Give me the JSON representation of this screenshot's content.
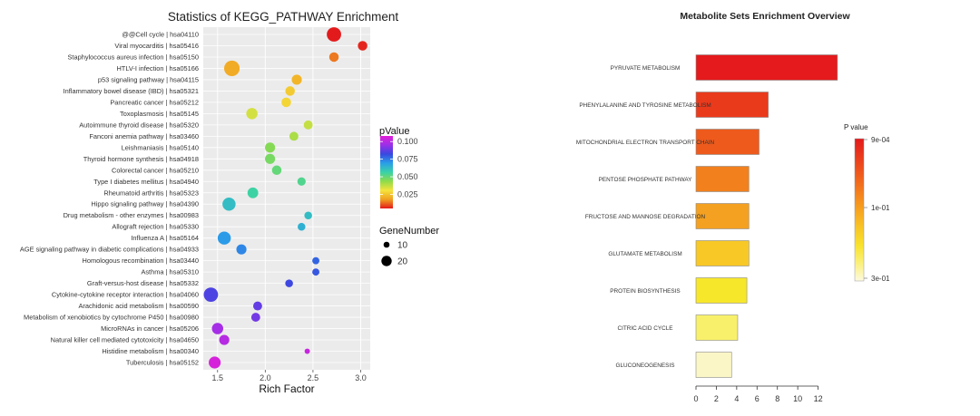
{
  "chart_data": [
    {
      "type": "scatter",
      "title": "Statistics of KEGG_PATHWAY Enrichment",
      "xlabel": "Rich Factor",
      "xlim": [
        1.35,
        3.1
      ],
      "xticks": [
        "1.5",
        "2.0",
        "2.5",
        "3.0"
      ],
      "xtick_values": [
        1.5,
        2.0,
        2.5,
        3.0
      ],
      "grid": true,
      "background": "#ebebeb",
      "color_legend": {
        "title": "pValue",
        "ticks": [
          "0.100",
          "0.075",
          "0.050",
          "0.025"
        ],
        "tick_values": [
          0.1,
          0.075,
          0.05,
          0.025
        ],
        "range": [
          0.005,
          0.108
        ],
        "colors": [
          "#e31a1c",
          "#f0a020",
          "#f5e33c",
          "#8edb4a",
          "#3ad2a8",
          "#2a9fe8",
          "#3848e0",
          "#9b30e8",
          "#e020d8"
        ]
      },
      "size_legend": {
        "title": "GeneNumber",
        "labels": [
          "10",
          "20"
        ],
        "values": [
          10,
          20
        ]
      },
      "points": [
        {
          "term": "@@Cell cycle | hsa04110",
          "rich": 2.72,
          "p": 0.003,
          "genes": 20
        },
        {
          "term": "Viral myocarditis | hsa05416",
          "rich": 3.02,
          "p": 0.006,
          "genes": 12
        },
        {
          "term": "Staphylococcus aureus infection | hsa05150",
          "rich": 2.72,
          "p": 0.014,
          "genes": 12
        },
        {
          "term": "HTLV-I infection | hsa05166",
          "rich": 1.65,
          "p": 0.02,
          "genes": 22
        },
        {
          "term": "p53 signaling pathway | hsa04115",
          "rich": 2.33,
          "p": 0.022,
          "genes": 13
        },
        {
          "term": "Inflammatory bowel disease (IBD) | hsa05321",
          "rich": 2.26,
          "p": 0.026,
          "genes": 12
        },
        {
          "term": "Pancreatic cancer | hsa05212",
          "rich": 2.22,
          "p": 0.028,
          "genes": 12
        },
        {
          "term": "Toxoplasmosis | hsa05145",
          "rich": 1.86,
          "p": 0.035,
          "genes": 15
        },
        {
          "term": "Autoimmune thyroid disease | hsa05320",
          "rich": 2.45,
          "p": 0.037,
          "genes": 11
        },
        {
          "term": "Fanconi anemia pathway | hsa03460",
          "rich": 2.3,
          "p": 0.04,
          "genes": 11
        },
        {
          "term": "Leishmaniasis | hsa05140",
          "rich": 2.05,
          "p": 0.045,
          "genes": 13
        },
        {
          "term": "Thyroid hormone synthesis | hsa04918",
          "rich": 2.05,
          "p": 0.047,
          "genes": 13
        },
        {
          "term": "Colorectal cancer | hsa05210",
          "rich": 2.12,
          "p": 0.05,
          "genes": 12
        },
        {
          "term": "Type I diabetes mellitus | hsa04940",
          "rich": 2.38,
          "p": 0.053,
          "genes": 10
        },
        {
          "term": "Rheumatoid arthritis | hsa05323",
          "rich": 1.87,
          "p": 0.056,
          "genes": 14
        },
        {
          "term": "Hippo signaling pathway | hsa04390",
          "rich": 1.62,
          "p": 0.062,
          "genes": 18
        },
        {
          "term": "Drug metabolism - other enzymes | hsa00983",
          "rich": 2.45,
          "p": 0.062,
          "genes": 9
        },
        {
          "term": "Allograft rejection | hsa05330",
          "rich": 2.38,
          "p": 0.065,
          "genes": 9
        },
        {
          "term": "Influenza A | hsa05164",
          "rich": 1.57,
          "p": 0.07,
          "genes": 18
        },
        {
          "term": "AGE signaling pathway in diabetic complications | hsa04933",
          "rich": 1.75,
          "p": 0.073,
          "genes": 13
        },
        {
          "term": "Homologous recombination | hsa03440",
          "rich": 2.53,
          "p": 0.078,
          "genes": 8
        },
        {
          "term": "Asthma | hsa05310",
          "rich": 2.53,
          "p": 0.08,
          "genes": 8
        },
        {
          "term": "Graft-versus-host disease | hsa05332",
          "rich": 2.25,
          "p": 0.083,
          "genes": 9
        },
        {
          "term": "Cytokine-cytokine receptor interaction | hsa04060",
          "rich": 1.43,
          "p": 0.085,
          "genes": 20
        },
        {
          "term": "Arachidonic acid metabolism | hsa00590",
          "rich": 1.92,
          "p": 0.088,
          "genes": 11
        },
        {
          "term": "Metabolism of xenobiotics by cytochrome P450 | hsa00980",
          "rich": 1.9,
          "p": 0.09,
          "genes": 11
        },
        {
          "term": "MicroRNAs in cancer | hsa05206",
          "rich": 1.5,
          "p": 0.097,
          "genes": 15
        },
        {
          "term": "Natural killer cell mediated cytotoxicity | hsa04650",
          "rich": 1.57,
          "p": 0.1,
          "genes": 13
        },
        {
          "term": "Histidine metabolism | hsa00340",
          "rich": 2.44,
          "p": 0.103,
          "genes": 5
        },
        {
          "term": "Tuberculosis | hsa05152",
          "rich": 1.47,
          "p": 0.106,
          "genes": 16
        }
      ]
    },
    {
      "type": "bar",
      "orientation": "horizontal",
      "title": "Metabolite Sets Enrichment Overview",
      "xlim": [
        0,
        14
      ],
      "xticks": [
        "0",
        "2",
        "4",
        "6",
        "8",
        "10",
        "12"
      ],
      "xtick_values": [
        0,
        2,
        4,
        6,
        8,
        10,
        12
      ],
      "grid": false,
      "categories": [
        "PYRUVATE METABOLISM",
        "PHENYLALANINE AND TYROSINE METABOLISM",
        "MITOCHONDRIAL ELECTRON TRANSPORT CHAIN",
        "PENTOSE PHOSPHATE PATHWAY",
        "FRUCTOSE AND MANNOSE DEGRADATION",
        "GLUTAMATE METABOLISM",
        "PROTEIN BIOSYNTHESIS",
        "CITRIC ACID CYCLE",
        "GLUCONEOGENESIS"
      ],
      "values": [
        13.9,
        7.1,
        6.2,
        5.2,
        5.2,
        5.2,
        5.0,
        4.1,
        3.5
      ],
      "bar_colors": [
        "#e41a1c",
        "#ea3a1c",
        "#ee5a1c",
        "#f2801c",
        "#f4a020",
        "#f8c826",
        "#f7e72b",
        "#f8f06a",
        "#fbf6c6"
      ],
      "color_legend": {
        "title": "P value",
        "labels": [
          "9e-04",
          "1e-01",
          "3e-01"
        ],
        "colors": [
          "#e31a1c",
          "#ea3a1c",
          "#f05a1c",
          "#f47e1c",
          "#f7a21f",
          "#f8c526",
          "#f9e22c",
          "#fbf07a",
          "#fdf9e0"
        ]
      }
    }
  ]
}
